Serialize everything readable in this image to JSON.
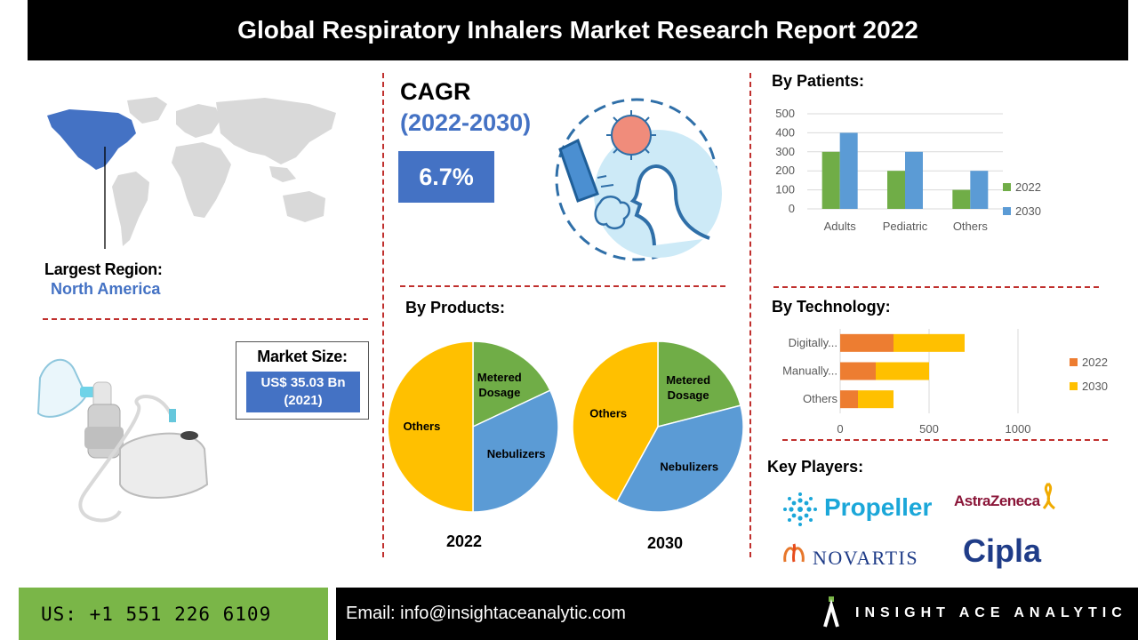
{
  "title": "Global Respiratory Inhalers Market Research Report 2022",
  "region": {
    "label": "Largest Region:",
    "value": "North America"
  },
  "market_size": {
    "label": "Market Size:",
    "value_line1": "US$ 35.03 Bn",
    "value_line2": "(2021)"
  },
  "cagr": {
    "title": "CAGR",
    "years": "(2022-2030)",
    "value": "6.7%"
  },
  "sections": {
    "patients": "By Patients:",
    "technology": "By Technology:",
    "products": "By Products:",
    "key_players": "Key Players:"
  },
  "key_players": [
    "Propeller",
    "AstraZeneca",
    "NOVARTIS",
    "Cipla"
  ],
  "colors": {
    "accent_blue": "#4472c4",
    "series_green": "#70ad47",
    "series_blue": "#5b9bd5",
    "series_orange": "#ed7d31",
    "series_yellow": "#ffc000",
    "divider_red": "#c0302e"
  },
  "icons": [
    "world-map-icon",
    "nebulizer-icon",
    "inhaler-icon",
    "virus-icon",
    "person-breathing-icon"
  ],
  "footer": {
    "phone": "US: +1 551 226 6109",
    "email": "Email: info@insightaceanalytic.com",
    "brand": "INSIGHT ACE ANALYTIC"
  },
  "chart_data": [
    {
      "id": "patients",
      "type": "bar",
      "title": "By Patients:",
      "categories": [
        "Adults",
        "Pediatric",
        "Others"
      ],
      "series": [
        {
          "name": "2022",
          "values": [
            300,
            200,
            100
          ]
        },
        {
          "name": "2030",
          "values": [
            400,
            300,
            200
          ]
        }
      ],
      "ylim": [
        0,
        500
      ],
      "yticks": [
        "0",
        "100",
        "200",
        "300",
        "400",
        "500"
      ],
      "legend": "right"
    },
    {
      "id": "technology",
      "type": "bar",
      "orientation": "horizontal",
      "stacked": true,
      "title": "By Technology:",
      "categories": [
        "Digitally...",
        "Manually...",
        "Others"
      ],
      "series": [
        {
          "name": "2022",
          "values": [
            300,
            200,
            100
          ]
        },
        {
          "name": "2030",
          "values": [
            400,
            300,
            200
          ]
        }
      ],
      "xlim": [
        0,
        1000
      ],
      "xticks": [
        "0",
        "500",
        "1000"
      ],
      "legend": "right"
    },
    {
      "id": "products-2022",
      "type": "pie",
      "title": "2022",
      "labels": [
        "Metered Dosage",
        "Nebulizers",
        "Others"
      ],
      "values": [
        18,
        32,
        50
      ]
    },
    {
      "id": "products-2030",
      "type": "pie",
      "title": "2030",
      "labels": [
        "Metered Dosage",
        "Nebulizers",
        "Others"
      ],
      "values": [
        21,
        37,
        42
      ]
    }
  ]
}
